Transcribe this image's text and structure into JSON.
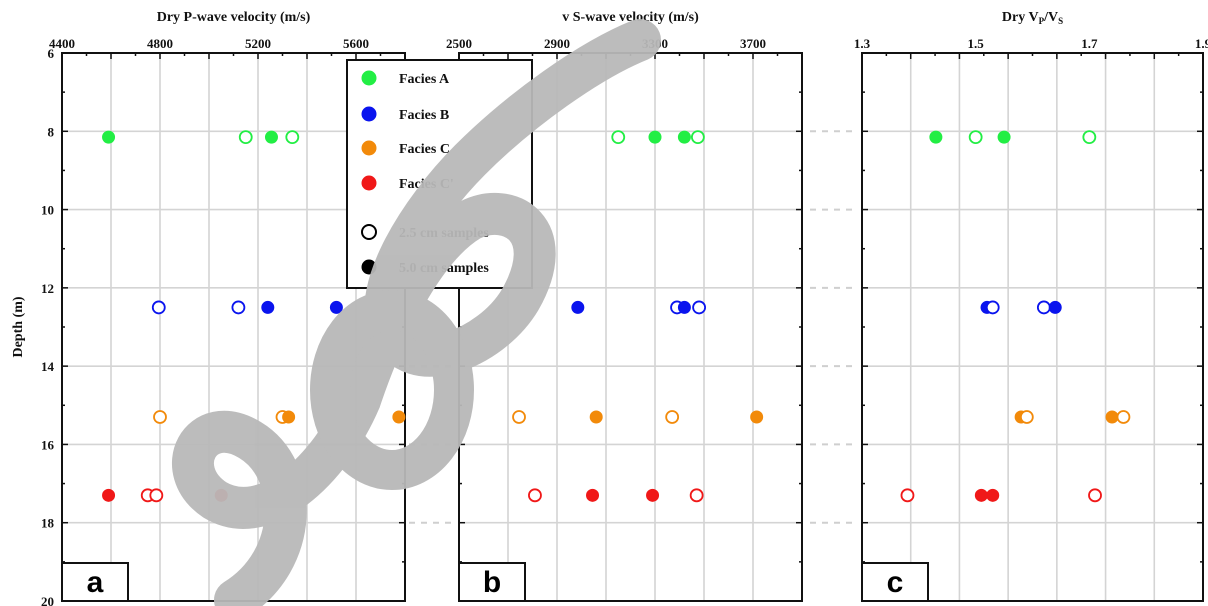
{
  "colors": {
    "facies_A": "#22ee44",
    "facies_B": "#0a14ee",
    "facies_C": "#f28a0a",
    "facies_Cprime": "#f01818",
    "grid": "#d4d4d4",
    "axis": "#111111",
    "watermark": "#b8b8b8"
  },
  "legend": {
    "placement": "upper-center over panels a and b",
    "entries": [
      {
        "label": "Facies A",
        "color_key": "facies_A",
        "filled": true
      },
      {
        "label": "Facies B",
        "color_key": "facies_B",
        "filled": true
      },
      {
        "label": "Facies C",
        "color_key": "facies_C",
        "filled": true
      },
      {
        "label": "Facies C'",
        "color_key": "facies_Cprime",
        "filled": true
      },
      {
        "label": "2.5 cm samples",
        "color_key": null,
        "filled": false
      },
      {
        "label": "5.0 cm samples",
        "color_key": null,
        "filled": true
      }
    ]
  },
  "shared_y": {
    "label": "Depth (m)",
    "range": [
      6,
      20
    ],
    "inverted": true,
    "ticks": [
      "6",
      "8",
      "10",
      "12",
      "14",
      "16",
      "18",
      "20"
    ]
  },
  "chart_data": [
    {
      "panel": "a",
      "type": "scatter",
      "xlabel": "Dry P-wave velocity (m/s)",
      "xlim": [
        4400,
        5800
      ],
      "xticks": [
        "4400",
        "4800",
        "5200",
        "5600"
      ],
      "ylabel": "Depth (m)",
      "ylim": [
        20,
        6
      ],
      "grid": true,
      "points": [
        {
          "x": 4590,
          "y": 8.15,
          "facies": "A",
          "filled": true
        },
        {
          "x": 5150,
          "y": 8.15,
          "facies": "A",
          "filled": false
        },
        {
          "x": 5255,
          "y": 8.15,
          "facies": "A",
          "filled": true
        },
        {
          "x": 5340,
          "y": 8.15,
          "facies": "A",
          "filled": false
        },
        {
          "x": 4795,
          "y": 12.5,
          "facies": "B",
          "filled": false
        },
        {
          "x": 5120,
          "y": 12.5,
          "facies": "B",
          "filled": false
        },
        {
          "x": 5240,
          "y": 12.5,
          "facies": "B",
          "filled": true
        },
        {
          "x": 5520,
          "y": 12.5,
          "facies": "B",
          "filled": true
        },
        {
          "x": 4800,
          "y": 15.3,
          "facies": "C",
          "filled": false
        },
        {
          "x": 5300,
          "y": 15.3,
          "facies": "C",
          "filled": false
        },
        {
          "x": 5325,
          "y": 15.3,
          "facies": "C",
          "filled": true
        },
        {
          "x": 5775,
          "y": 15.3,
          "facies": "C",
          "filled": true
        },
        {
          "x": 4590,
          "y": 17.3,
          "facies": "C'",
          "filled": true
        },
        {
          "x": 4750,
          "y": 17.3,
          "facies": "C'",
          "filled": false
        },
        {
          "x": 4785,
          "y": 17.3,
          "facies": "C'",
          "filled": false
        },
        {
          "x": 5050,
          "y": 17.3,
          "facies": "C'",
          "filled": true
        }
      ]
    },
    {
      "panel": "b",
      "type": "scatter",
      "xlabel": "v S-wave velocity (m/s)",
      "xlim": [
        2500,
        3900
      ],
      "xticks": [
        "2500",
        "2900",
        "3300",
        "3700"
      ],
      "ylabel": "",
      "ylim": [
        20,
        6
      ],
      "grid": true,
      "points": [
        {
          "x": 3150,
          "y": 8.15,
          "facies": "A",
          "filled": false
        },
        {
          "x": 3300,
          "y": 8.15,
          "facies": "A",
          "filled": true
        },
        {
          "x": 3420,
          "y": 8.15,
          "facies": "A",
          "filled": true
        },
        {
          "x": 3475,
          "y": 8.15,
          "facies": "A",
          "filled": false
        },
        {
          "x": 2985,
          "y": 12.5,
          "facies": "B",
          "filled": true
        },
        {
          "x": 3390,
          "y": 12.5,
          "facies": "B",
          "filled": false
        },
        {
          "x": 3420,
          "y": 12.5,
          "facies": "B",
          "filled": true
        },
        {
          "x": 3480,
          "y": 12.5,
          "facies": "B",
          "filled": false
        },
        {
          "x": 2745,
          "y": 15.3,
          "facies": "C",
          "filled": false
        },
        {
          "x": 3060,
          "y": 15.3,
          "facies": "C",
          "filled": true
        },
        {
          "x": 3370,
          "y": 15.3,
          "facies": "C",
          "filled": false
        },
        {
          "x": 3715,
          "y": 15.3,
          "facies": "C",
          "filled": true
        },
        {
          "x": 2810,
          "y": 17.3,
          "facies": "C'",
          "filled": false
        },
        {
          "x": 3045,
          "y": 17.3,
          "facies": "C'",
          "filled": true
        },
        {
          "x": 3290,
          "y": 17.3,
          "facies": "C'",
          "filled": true
        },
        {
          "x": 3470,
          "y": 17.3,
          "facies": "C'",
          "filled": false
        }
      ]
    },
    {
      "panel": "c",
      "type": "scatter",
      "xlabel": "Dry VP/VS",
      "xlabel_parts": {
        "main": "Dry V",
        "sub1": "P",
        "slash": "/V",
        "sub2": "S"
      },
      "xlim": [
        1.3,
        1.9
      ],
      "xticks": [
        "1.3",
        "1.5",
        "1.7",
        "1.9"
      ],
      "ylabel": "",
      "ylim": [
        20,
        6
      ],
      "grid": true,
      "points": [
        {
          "x": 1.43,
          "y": 8.15,
          "facies": "A",
          "filled": true
        },
        {
          "x": 1.5,
          "y": 8.15,
          "facies": "A",
          "filled": false
        },
        {
          "x": 1.55,
          "y": 8.15,
          "facies": "A",
          "filled": true
        },
        {
          "x": 1.7,
          "y": 8.15,
          "facies": "A",
          "filled": false
        },
        {
          "x": 1.52,
          "y": 12.5,
          "facies": "B",
          "filled": true
        },
        {
          "x": 1.53,
          "y": 12.5,
          "facies": "B",
          "filled": false
        },
        {
          "x": 1.62,
          "y": 12.5,
          "facies": "B",
          "filled": false
        },
        {
          "x": 1.64,
          "y": 12.5,
          "facies": "B",
          "filled": true
        },
        {
          "x": 1.58,
          "y": 15.3,
          "facies": "C",
          "filled": true
        },
        {
          "x": 1.59,
          "y": 15.3,
          "facies": "C",
          "filled": false
        },
        {
          "x": 1.74,
          "y": 15.3,
          "facies": "C",
          "filled": true
        },
        {
          "x": 1.76,
          "y": 15.3,
          "facies": "C",
          "filled": false
        },
        {
          "x": 1.38,
          "y": 17.3,
          "facies": "C'",
          "filled": false
        },
        {
          "x": 1.51,
          "y": 17.3,
          "facies": "C'",
          "filled": true
        },
        {
          "x": 1.53,
          "y": 17.3,
          "facies": "C'",
          "filled": true
        },
        {
          "x": 1.71,
          "y": 17.3,
          "facies": "C'",
          "filled": false
        }
      ]
    }
  ]
}
